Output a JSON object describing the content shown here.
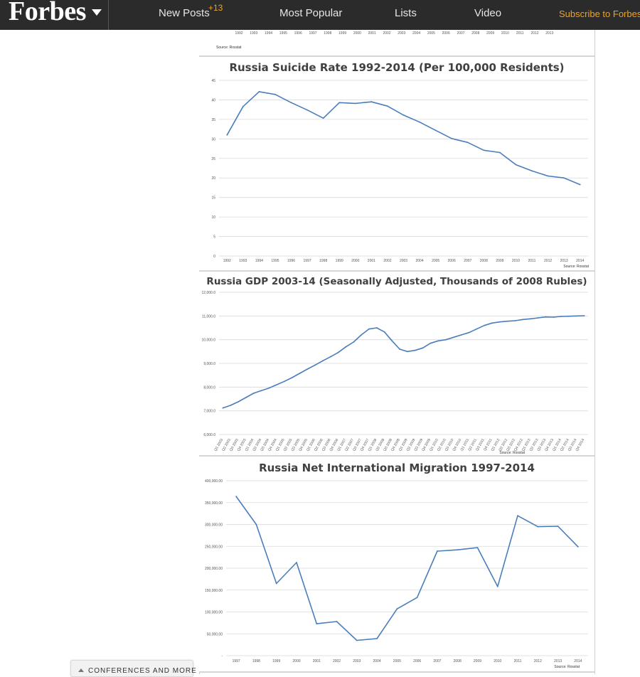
{
  "header": {
    "logo_text": "Forbes",
    "nav": {
      "new_posts": "New Posts",
      "new_posts_badge": "+13",
      "most_popular": "Most Popular",
      "lists": "Lists",
      "video": "Video",
      "subscribe": "Subscribe to Forbes"
    }
  },
  "colors": {
    "header_bg": "#2b2b2b",
    "accent": "#f2a21b",
    "series_line": "#4a7ebb",
    "grid": "#d9d9d9"
  },
  "icons": {
    "logo_menu": "caret-down-icon",
    "conferences_toggle": "caret-up-icon"
  },
  "sidebar": {
    "conferences_label": "CONFERENCES AND MORE"
  },
  "top_partial_chart": {
    "x_ticks": [
      "1992",
      "1993",
      "1994",
      "1995",
      "1996",
      "1997",
      "1998",
      "1999",
      "2000",
      "2001",
      "2002",
      "2003",
      "2004",
      "2005",
      "2006",
      "2007",
      "2008",
      "2009",
      "2010",
      "2011",
      "2012",
      "2013"
    ],
    "source": "Source: Rosstat"
  },
  "chart_data": [
    {
      "type": "line",
      "title": "Russia Suicide Rate 1992-2014 (Per 100,000 Residents)",
      "x": [
        "1992",
        "1993",
        "1994",
        "1995",
        "1996",
        "1997",
        "1998",
        "1999",
        "2000",
        "2001",
        "2002",
        "2003",
        "2004",
        "2005",
        "2006",
        "2007",
        "2008",
        "2009",
        "2010",
        "2011",
        "2012",
        "2013",
        "2014"
      ],
      "y_ticks": [
        "0",
        "5",
        "10",
        "15",
        "20",
        "25",
        "30",
        "35",
        "40",
        "45"
      ],
      "ylim": [
        0,
        45
      ],
      "series": [
        {
          "values": [
            31.0,
            38.3,
            42.1,
            41.4,
            39.3,
            37.4,
            35.3,
            39.3,
            39.1,
            39.5,
            38.4,
            36.1,
            34.3,
            32.2,
            30.1,
            29.1,
            27.1,
            26.5,
            23.4,
            21.8,
            20.5,
            20.0,
            18.3
          ]
        }
      ],
      "grid": true,
      "source": "Source: Rosstat"
    },
    {
      "type": "line",
      "title": "Russia GDP 2003-14 (Seasonally Adjusted, Thousands of 2008 Rubles)",
      "x": [
        "Q1 2003",
        "Q2 2003",
        "Q3 2003",
        "Q4 2003",
        "Q1 2004",
        "Q2 2004",
        "Q3 2004",
        "Q4 2004",
        "Q1 2005",
        "Q2 2005",
        "Q3 2005",
        "Q4 2005",
        "Q1 2006",
        "Q2 2006",
        "Q3 2006",
        "Q4 2006",
        "Q1 2007",
        "Q2 2007",
        "Q3 2007",
        "Q4 2007",
        "Q1 2008",
        "Q2 2008",
        "Q3 2008",
        "Q4 2008",
        "Q1 2009",
        "Q2 2009",
        "Q3 2009",
        "Q4 2009",
        "Q1 2010",
        "Q2 2010",
        "Q3 2010",
        "Q4 2010",
        "Q1 2011",
        "Q2 2011",
        "Q3 2011",
        "Q4 2011",
        "Q1 2012",
        "Q2 2012",
        "Q3 2012",
        "Q4 2012",
        "Q1 2013",
        "Q2 2013",
        "Q3 2013",
        "Q4 2013",
        "Q1 2014",
        "Q2 2014",
        "Q3 2014",
        "Q4 2014"
      ],
      "y_ticks": [
        "6,000.0",
        "7,000.0",
        "8,000.0",
        "9,000.0",
        "10,000.0",
        "11,000.0",
        "12,000.0"
      ],
      "ylim": [
        6000,
        12000
      ],
      "series": [
        {
          "values": [
            7120,
            7230,
            7380,
            7560,
            7740,
            7850,
            7960,
            8100,
            8240,
            8400,
            8580,
            8760,
            8930,
            9110,
            9280,
            9460,
            9700,
            9900,
            10200,
            10450,
            10500,
            10330,
            9950,
            9600,
            9500,
            9550,
            9650,
            9850,
            9950,
            10000,
            10100,
            10200,
            10300,
            10450,
            10600,
            10700,
            10750,
            10780,
            10800,
            10850,
            10880,
            10920,
            10960,
            10950,
            10980,
            10990,
            11000,
            11010
          ]
        }
      ],
      "grid": true,
      "source": "Source: Rosstat"
    },
    {
      "type": "line",
      "title": "Russia Net International Migration 1997-2014",
      "x": [
        "1997",
        "1998",
        "1999",
        "2000",
        "2001",
        "2002",
        "2003",
        "2004",
        "2005",
        "2006",
        "2007",
        "2008",
        "2009",
        "2010",
        "2011",
        "2012",
        "2013",
        "2014"
      ],
      "y_ticks": [
        "-",
        "50,000.00",
        "100,000.00",
        "150,000.00",
        "200,000.00",
        "250,000.00",
        "300,000.00",
        "350,000.00",
        "400,000.00"
      ],
      "ylim": [
        0,
        400000
      ],
      "series": [
        {
          "values": [
            364000,
            300000,
            165000,
            213000,
            73000,
            78000,
            35000,
            39000,
            107000,
            133000,
            239000,
            242000,
            247000,
            158000,
            320000,
            295000,
            296000,
            249000
          ]
        }
      ],
      "grid": true,
      "source": "Source: Rosstat"
    }
  ]
}
